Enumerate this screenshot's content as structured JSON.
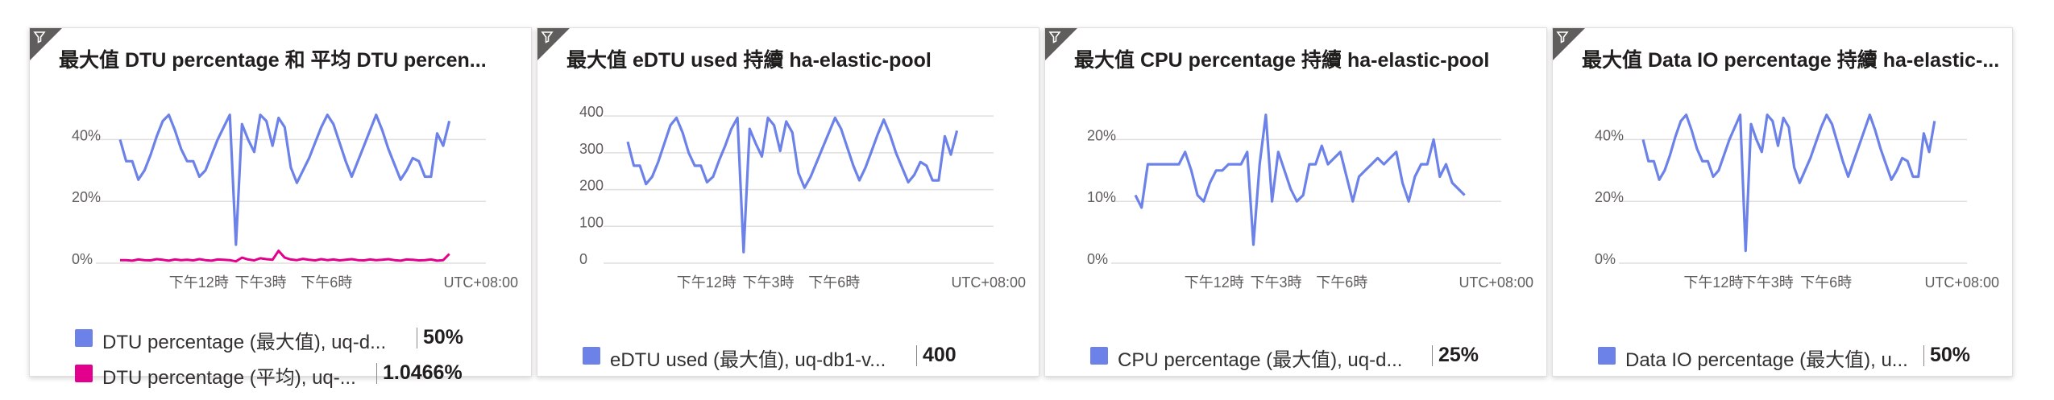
{
  "colors": {
    "series_primary": "#6c82e8",
    "series_secondary": "#e3008c",
    "grid": "#e1dfdd",
    "tick_text": "#605e5c"
  },
  "filter_icon": "filter-icon",
  "tiles": [
    {
      "title": "最大值 DTU percentage 和 平均 DTU percen...",
      "legend": [
        {
          "label": "DTU percentage (最大值), uq-d...",
          "value": "50%",
          "color": "#6c82e8"
        },
        {
          "label": "DTU percentage (平均), uq-...",
          "value": "1.0466%",
          "color": "#e3008c"
        }
      ]
    },
    {
      "title": "最大值 eDTU used 持續 ha-elastic-pool",
      "legend": [
        {
          "label": "eDTU used (最大值), uq-db1-v...",
          "value": "400",
          "color": "#6c82e8"
        }
      ]
    },
    {
      "title": "最大值 CPU percentage 持續 ha-elastic-pool",
      "legend": [
        {
          "label": "CPU percentage (最大值), uq-d...",
          "value": "25%",
          "color": "#6c82e8"
        }
      ]
    },
    {
      "title": "最大值 Data IO percentage 持續 ha-elastic-...",
      "legend": [
        {
          "label": "Data IO percentage (最大值), u...",
          "value": "50%",
          "color": "#6c82e8"
        }
      ]
    }
  ],
  "chart_data": [
    {
      "type": "line",
      "y_ticks": [
        "0%",
        "20%",
        "40%"
      ],
      "ylim": [
        0,
        50
      ],
      "x_ticks": [
        "下午12時",
        "下午3時",
        "下午6時"
      ],
      "x_tick_positions": [
        0.2,
        0.38,
        0.56
      ],
      "timezone_label": "UTC+08:00",
      "series": [
        {
          "color": "#6c82e8",
          "values": [
            40,
            33,
            33,
            27,
            30,
            35,
            41,
            46,
            48,
            43,
            37,
            33,
            33,
            28,
            30,
            35,
            40,
            44,
            48,
            6,
            45,
            40,
            36,
            48,
            46,
            38,
            47,
            44,
            31,
            26,
            30,
            34,
            39,
            44,
            48,
            45,
            39,
            33,
            28,
            33,
            38,
            43,
            48,
            43,
            37,
            32,
            27,
            30,
            34,
            33,
            28,
            28,
            42,
            38,
            46
          ]
        },
        {
          "color": "#e3008c",
          "values": [
            1.0,
            1.0,
            0.8,
            1.2,
            1.0,
            0.9,
            1.3,
            1.1,
            0.8,
            1.2,
            1.0,
            1.1,
            0.9,
            1.3,
            1.0,
            0.8,
            1.2,
            1.1,
            1.0,
            0.6,
            1.8,
            1.2,
            0.9,
            1.6,
            1.3,
            1.1,
            4.0,
            1.8,
            1.2,
            1.0,
            1.4,
            1.1,
            0.9,
            1.3,
            1.0,
            1.2,
            0.9,
            1.1,
            1.3,
            1.0,
            0.9,
            1.2,
            1.0,
            1.1,
            1.3,
            1.0,
            0.8,
            1.2,
            1.1,
            0.9,
            1.0,
            1.2,
            0.8,
            1.0,
            3.0
          ]
        }
      ]
    },
    {
      "type": "line",
      "y_ticks": [
        "0",
        "100",
        "200",
        "300",
        "400"
      ],
      "ylim": [
        0,
        420
      ],
      "x_ticks": [
        "下午12時",
        "下午3時",
        "下午6時"
      ],
      "x_tick_positions": [
        0.2,
        0.38,
        0.56
      ],
      "timezone_label": "UTC+08:00",
      "series": [
        {
          "color": "#6c82e8",
          "values": [
            330,
            265,
            265,
            215,
            235,
            275,
            325,
            375,
            395,
            355,
            300,
            265,
            265,
            220,
            235,
            280,
            320,
            365,
            395,
            30,
            365,
            325,
            290,
            395,
            375,
            305,
            385,
            355,
            245,
            205,
            235,
            275,
            315,
            355,
            395,
            365,
            315,
            265,
            225,
            260,
            305,
            350,
            390,
            350,
            300,
            260,
            220,
            240,
            275,
            265,
            225,
            225,
            345,
            295,
            360
          ]
        }
      ]
    },
    {
      "type": "line",
      "y_ticks": [
        "0%",
        "10%",
        "20%"
      ],
      "ylim": [
        0,
        25
      ],
      "x_ticks": [
        "下午12時",
        "下午3時",
        "下午6時"
      ],
      "x_tick_positions": [
        0.2,
        0.38,
        0.56
      ],
      "timezone_label": "UTC+08:00",
      "series": [
        {
          "color": "#6c82e8",
          "values": [
            11,
            9,
            16,
            16,
            16,
            16,
            16,
            16,
            18,
            15,
            11,
            10,
            13,
            15,
            15,
            16,
            16,
            16,
            18,
            3,
            16,
            24,
            10,
            18,
            15,
            12,
            10,
            11,
            16,
            16,
            19,
            16,
            17,
            18,
            14,
            10,
            14,
            15,
            16,
            17,
            16,
            17,
            18,
            13,
            10,
            14,
            16,
            16,
            20,
            14,
            16,
            13,
            12,
            11
          ]
        }
      ]
    },
    {
      "type": "line",
      "y_ticks": [
        "0%",
        "20%",
        "40%"
      ],
      "ylim": [
        0,
        50
      ],
      "x_ticks": [
        "下午12時",
        "下午3時",
        "下午6時"
      ],
      "x_tick_positions": [
        0.2,
        0.38,
        0.56
      ],
      "timezone_label": "UTC+08:00",
      "series": [
        {
          "color": "#6c82e8",
          "values": [
            40,
            33,
            33,
            27,
            30,
            35,
            41,
            46,
            48,
            43,
            37,
            33,
            33,
            28,
            30,
            35,
            40,
            44,
            48,
            4,
            45,
            40,
            36,
            48,
            46,
            38,
            47,
            44,
            31,
            26,
            30,
            34,
            39,
            44,
            48,
            45,
            39,
            33,
            28,
            33,
            38,
            43,
            48,
            43,
            37,
            32,
            27,
            30,
            34,
            33,
            28,
            28,
            42,
            36,
            46
          ]
        }
      ]
    }
  ]
}
